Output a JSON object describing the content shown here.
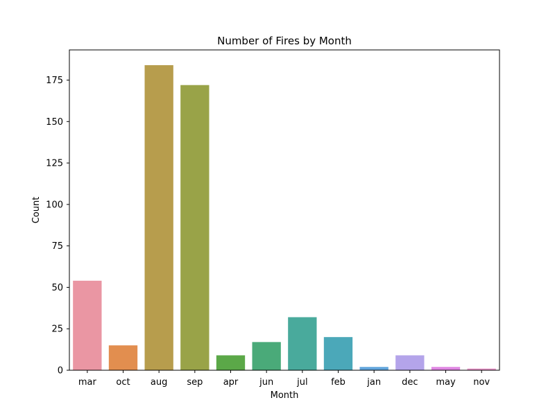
{
  "chart_data": {
    "type": "bar",
    "title": "Number of Fires by Month",
    "xlabel": "Month",
    "ylabel": "Count",
    "categories": [
      "mar",
      "oct",
      "aug",
      "sep",
      "apr",
      "jun",
      "jul",
      "feb",
      "jan",
      "dec",
      "may",
      "nov"
    ],
    "values": [
      54,
      15,
      184,
      172,
      9,
      17,
      32,
      20,
      2,
      9,
      2,
      1
    ],
    "colors": [
      "#ea96a3",
      "#e28e4f",
      "#b79d4d",
      "#99a348",
      "#5ba848",
      "#4aaa79",
      "#49aa9c",
      "#4ba8b9",
      "#63a6dd",
      "#b4a4ea",
      "#e087e3",
      "#e893c8"
    ],
    "ylim": [
      0,
      193.2
    ],
    "yticks": [
      0,
      25,
      50,
      75,
      100,
      125,
      150,
      175
    ],
    "grid": false,
    "legend": "none"
  }
}
